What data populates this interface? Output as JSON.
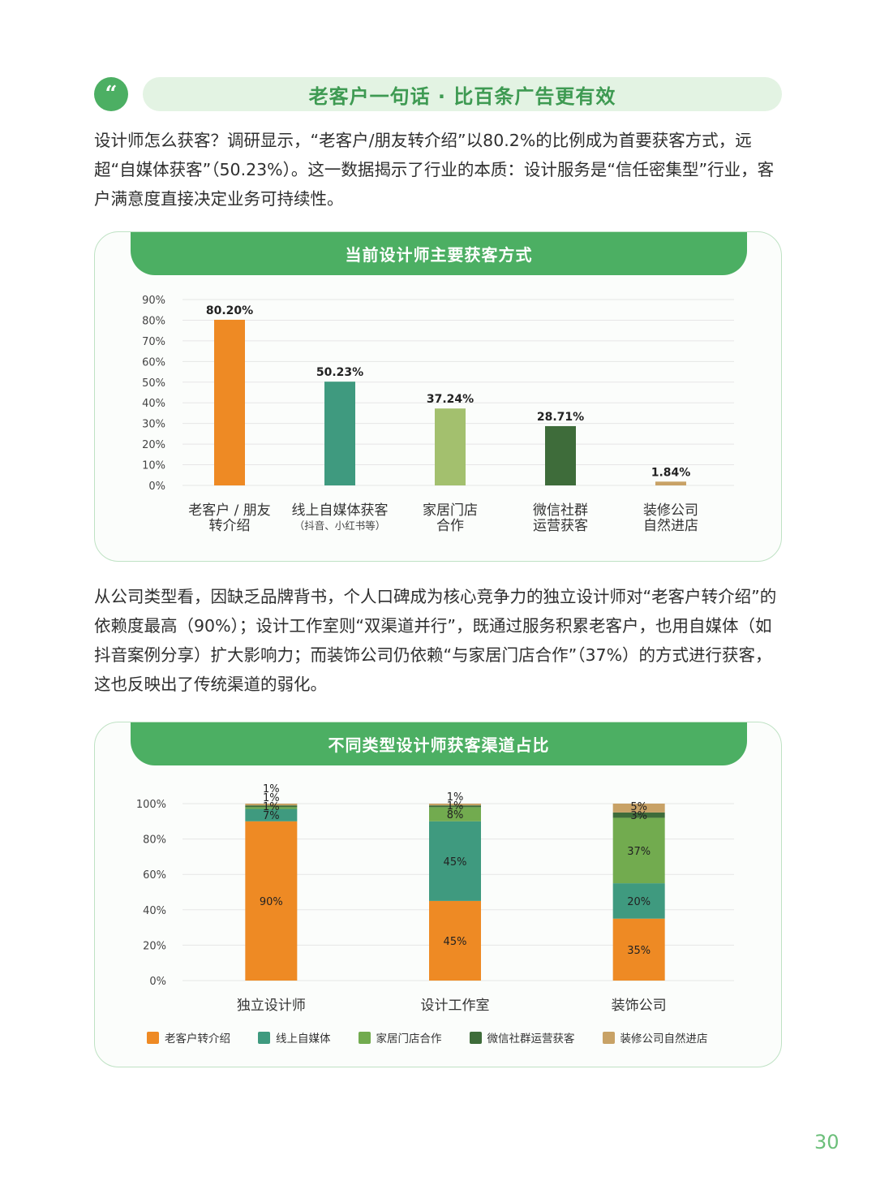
{
  "section": {
    "quote_mark": "“",
    "title": "老客户一句话 · 比百条广告更有效"
  },
  "paragraph1": "设计师怎么获客？调研显示，“老客户/朋友转介绍”以80.2%的比例成为首要获客方式，远超“自媒体获客”（50.23%）。这一数据揭示了行业的本质：设计服务是“信任密集型”行业，客户满意度直接决定业务可持续性。",
  "paragraph2": "从公司类型看，因缺乏品牌背书，个人口碑成为核心竞争力的独立设计师对“老客户转介绍”的依赖度最高（90%）；设计工作室则“双渠道并行”，既通过服务积累老客户，也用自媒体（如抖音案例分享）扩大影响力；而装饰公司仍依赖“与家居门店合作”（37%）的方式进行获客，这也反映出了传统渠道的弱化。",
  "page_number": "30",
  "chart_data": [
    {
      "type": "bar",
      "title": "当前设计师主要获客方式",
      "categories": [
        [
          "老客户 / 朋友",
          "转介绍"
        ],
        [
          "线上自媒体获客",
          "（抖音、小红书等）"
        ],
        [
          "家居门店",
          "合作"
        ],
        [
          "微信社群",
          "运营获客"
        ],
        [
          "装修公司",
          "自然进店"
        ]
      ],
      "values": [
        80.2,
        50.23,
        37.24,
        28.71,
        1.84
      ],
      "value_labels": [
        "80.20%",
        "50.23%",
        "37.24%",
        "28.71%",
        "1.84%"
      ],
      "colors": [
        "#ee8a24",
        "#3f9a7f",
        "#a3c06e",
        "#3e6c3a",
        "#c8a266"
      ],
      "ylim": [
        0,
        90
      ],
      "yticks": [
        "0%",
        "10%",
        "20%",
        "30%",
        "40%",
        "50%",
        "60%",
        "70%",
        "80%",
        "90%"
      ],
      "grid": true
    },
    {
      "type": "bar",
      "stacked": true,
      "title": "不同类型设计师获客渠道占比",
      "categories": [
        "独立设计师",
        "设计工作室",
        "装饰公司"
      ],
      "series": [
        {
          "name": "老客户转介绍",
          "color": "#ee8a24",
          "values": [
            90,
            45,
            35
          ]
        },
        {
          "name": "线上自媒体",
          "color": "#3f9a7f",
          "values": [
            7,
            45,
            20
          ]
        },
        {
          "name": "家居门店合作",
          "color": "#72ab4f",
          "values": [
            1,
            8,
            37
          ]
        },
        {
          "name": "微信社群运营获客",
          "color": "#3e6c3a",
          "values": [
            1,
            1,
            3
          ]
        },
        {
          "name": "装修公司自然进店",
          "color": "#c8a266",
          "values": [
            1,
            1,
            5
          ]
        }
      ],
      "ylim": [
        0,
        100
      ],
      "yticks": [
        "0%",
        "20%",
        "40%",
        "60%",
        "80%",
        "100%"
      ],
      "legend": "bottom",
      "grid": true
    }
  ]
}
